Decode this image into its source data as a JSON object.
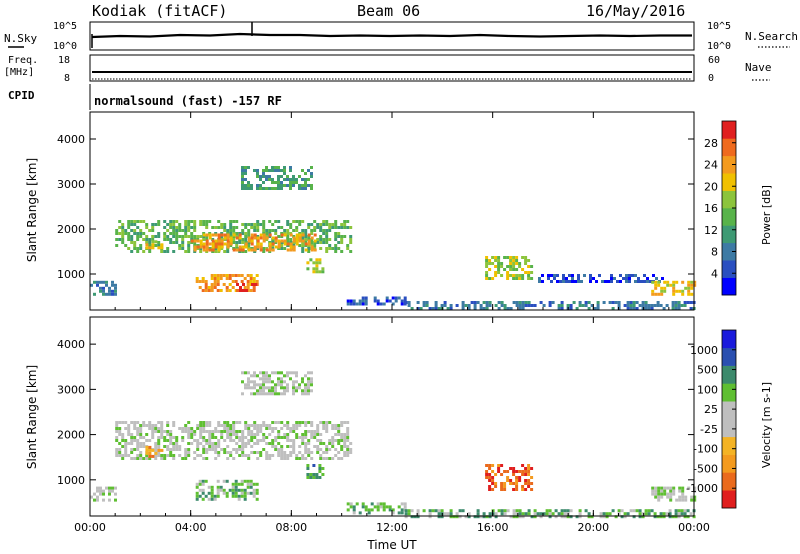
{
  "header": {
    "radar": "Kodiak (fitACF)",
    "beam": "Beam 06",
    "date": "16/May/2016"
  },
  "top_panels": {
    "nsky_label": "N.Sky",
    "nsky_ticks": [
      "10^5",
      "10^0"
    ],
    "nsearch_label": "N.Search",
    "nsearch_ticks": [
      "10^5",
      "10^0"
    ],
    "freq_label": "Freq.",
    "freq_unit": "[MHz]",
    "freq_ticks": [
      "18",
      "8"
    ],
    "nave_label": "Nave",
    "nave_ticks": [
      "60",
      "0"
    ],
    "cpid_label": "CPID",
    "cpid_text": "normalsound (fast) -157 RF"
  },
  "chart_data": [
    {
      "type": "heatmap",
      "name": "power",
      "ylabel": "Slant Range [km]",
      "yticks": [
        "1000",
        "2000",
        "3000",
        "4000"
      ],
      "ylim": [
        200,
        4600
      ],
      "xlim": [
        0,
        24
      ],
      "xticks": [
        "00:00",
        "04:00",
        "08:00",
        "12:00",
        "16:00",
        "20:00",
        "00:00"
      ],
      "colorbar": {
        "label": "Power [dB]",
        "ticks": [
          "4",
          "8",
          "12",
          "16",
          "20",
          "24",
          "28"
        ],
        "colors": [
          "#0000ff",
          "#2a4fc0",
          "#3d7aa4",
          "#3e9a74",
          "#58b34a",
          "#8cc43c",
          "#f0c000",
          "#f39a1e",
          "#ef6a1e",
          "#e02020"
        ]
      },
      "regions": [
        {
          "t0": 0.0,
          "t1": 1.0,
          "r0": 550,
          "r1": 850,
          "level": 2
        },
        {
          "t0": 1.0,
          "t1": 10.3,
          "r0": 1500,
          "r1": 2200,
          "level": 4
        },
        {
          "t0": 2.2,
          "t1": 2.8,
          "r0": 1550,
          "r1": 1750,
          "level": 6
        },
        {
          "t0": 4.0,
          "t1": 9.0,
          "r0": 1550,
          "r1": 1900,
          "level": 7
        },
        {
          "t0": 4.2,
          "t1": 6.6,
          "r0": 600,
          "r1": 1000,
          "level": 7
        },
        {
          "t0": 5.8,
          "t1": 6.6,
          "r0": 600,
          "r1": 800,
          "level": 9
        },
        {
          "t0": 6.0,
          "t1": 8.8,
          "r0": 2900,
          "r1": 3400,
          "level": 3
        },
        {
          "t0": 8.6,
          "t1": 9.2,
          "r0": 1050,
          "r1": 1350,
          "level": 5
        },
        {
          "t0": 10.2,
          "t1": 12.5,
          "r0": 300,
          "r1": 500,
          "level": 1
        },
        {
          "t0": 12.5,
          "t1": 24.0,
          "r0": 200,
          "r1": 400,
          "level": 2
        },
        {
          "t0": 15.7,
          "t1": 17.6,
          "r0": 900,
          "r1": 1400,
          "level": 5
        },
        {
          "t0": 17.8,
          "t1": 22.8,
          "r0": 800,
          "r1": 1000,
          "level": 1
        },
        {
          "t0": 22.3,
          "t1": 24.0,
          "r0": 550,
          "r1": 850,
          "level": 6
        }
      ]
    },
    {
      "type": "heatmap",
      "name": "velocity",
      "ylabel": "Slant Range [km]",
      "yticks": [
        "1000",
        "2000",
        "3000",
        "4000"
      ],
      "ylim": [
        200,
        4600
      ],
      "xlim": [
        0,
        24
      ],
      "xlabel": "Time UT",
      "xticks": [
        "00:00",
        "04:00",
        "08:00",
        "12:00",
        "16:00",
        "20:00",
        "00:00"
      ],
      "colorbar": {
        "label": "Velocity [m s-1]",
        "ticks": [
          "1000",
          "500",
          "100",
          "25",
          "-25",
          "-100",
          "-500",
          "-1000"
        ],
        "colors": [
          "#1a1adc",
          "#2a4fb0",
          "#3c8a6c",
          "#5fbf32",
          "#bfbfbf",
          "#bfbfbf",
          "#f4b324",
          "#f39a1e",
          "#ea6a1c",
          "#e01e1e"
        ]
      },
      "regions": [
        {
          "t0": 0.0,
          "t1": 1.0,
          "r0": 550,
          "r1": 850,
          "level": 4
        },
        {
          "t0": 1.0,
          "t1": 10.3,
          "r0": 1500,
          "r1": 2300,
          "level": 4
        },
        {
          "t0": 2.2,
          "t1": 2.8,
          "r0": 1550,
          "r1": 1750,
          "level": 7
        },
        {
          "t0": 4.2,
          "t1": 6.6,
          "r0": 550,
          "r1": 1000,
          "level": 3
        },
        {
          "t0": 6.0,
          "t1": 8.8,
          "r0": 2900,
          "r1": 3400,
          "level": 4
        },
        {
          "t0": 8.6,
          "t1": 9.2,
          "r0": 1050,
          "r1": 1350,
          "level": 2
        },
        {
          "t0": 10.2,
          "t1": 12.5,
          "r0": 300,
          "r1": 500,
          "level": 3
        },
        {
          "t0": 12.5,
          "t1": 24.0,
          "r0": 200,
          "r1": 350,
          "level": 3
        },
        {
          "t0": 15.7,
          "t1": 17.6,
          "r0": 800,
          "r1": 1350,
          "level": 8
        },
        {
          "t0": 22.3,
          "t1": 24.0,
          "r0": 550,
          "r1": 850,
          "level": 4
        }
      ]
    }
  ]
}
